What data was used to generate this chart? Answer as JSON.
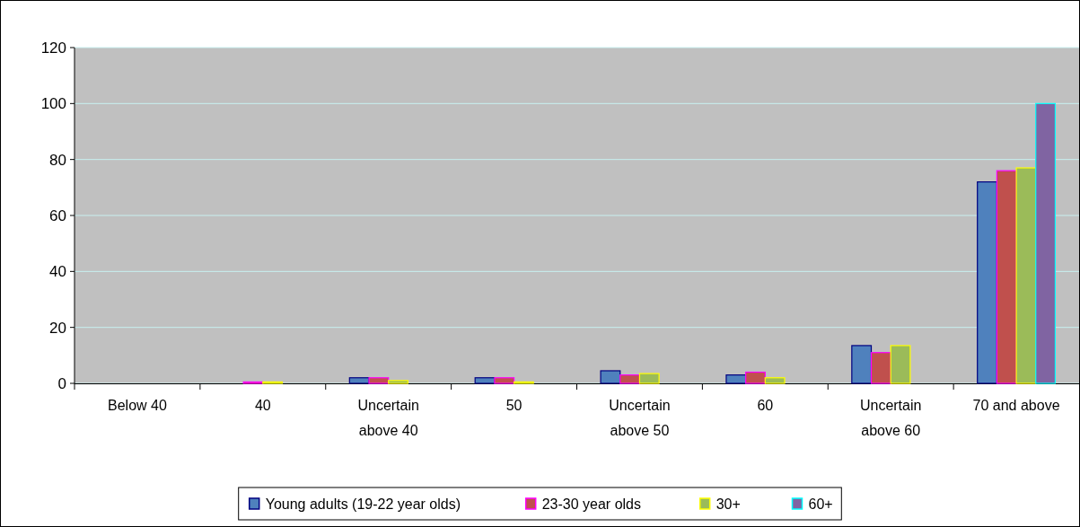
{
  "chart_data": {
    "type": "bar",
    "categories": [
      "Below 40",
      "40",
      "Uncertain above 40",
      "50",
      "Uncertain above 50",
      "60",
      "Uncertain above 60",
      "70 and above"
    ],
    "series": [
      {
        "name": "Young adults (19-22 year olds)",
        "color": "#4f81bd",
        "values": [
          0,
          0,
          2,
          2,
          4.5,
          3,
          13.5,
          72
        ]
      },
      {
        "name": "23-30 year olds",
        "color": "#c0504d",
        "values": [
          0,
          0.5,
          2,
          2,
          3,
          4,
          11,
          76
        ]
      },
      {
        "name": "30+",
        "color": "#9bbb59",
        "values": [
          0,
          0.5,
          1,
          0.5,
          3.5,
          2,
          13.5,
          77
        ]
      },
      {
        "name": "60+",
        "color": "#8064a2",
        "values": [
          0,
          0,
          0,
          0,
          0,
          0,
          0,
          100
        ]
      }
    ],
    "ylim": [
      0,
      120
    ],
    "yticks": [
      0,
      20,
      40,
      60,
      80,
      100,
      120
    ],
    "grid": "y",
    "legend": "bottom"
  }
}
